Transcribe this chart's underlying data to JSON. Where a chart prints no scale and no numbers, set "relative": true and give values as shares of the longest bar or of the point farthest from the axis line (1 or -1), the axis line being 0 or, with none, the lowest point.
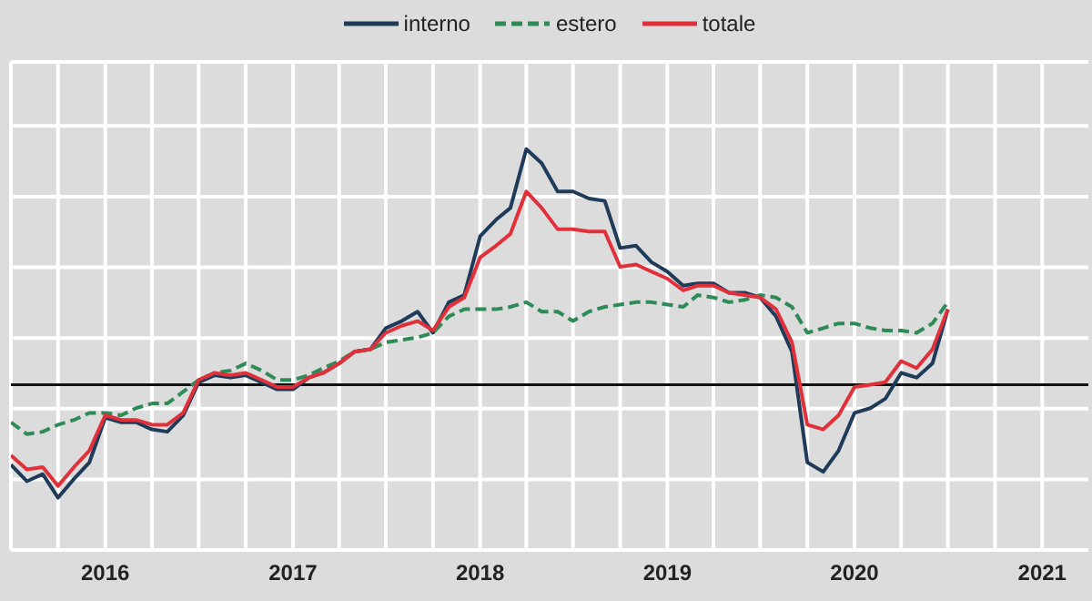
{
  "chart_data": {
    "type": "line",
    "relative": true,
    "grid": true,
    "legend": "top",
    "ref_lines": [
      {
        "axis": "y",
        "value": 0,
        "color": "#111111"
      }
    ],
    "marker": "none",
    "x": [
      "2015-07",
      "2015-08",
      "2015-09",
      "2015-10",
      "2015-11",
      "2015-12",
      "2016-01",
      "2016-02",
      "2016-03",
      "2016-04",
      "2016-05",
      "2016-06",
      "2016-07",
      "2016-08",
      "2016-09",
      "2016-10",
      "2016-11",
      "2016-12",
      "2017-01",
      "2017-02",
      "2017-03",
      "2017-04",
      "2017-05",
      "2017-06",
      "2017-07",
      "2017-08",
      "2017-09",
      "2017-10",
      "2017-11",
      "2017-12",
      "2018-01",
      "2018-02",
      "2018-03",
      "2018-04",
      "2018-05",
      "2018-06",
      "2018-07",
      "2018-08",
      "2018-09",
      "2018-10",
      "2018-11",
      "2018-12",
      "2019-01",
      "2019-02",
      "2019-03",
      "2019-04",
      "2019-05",
      "2019-06",
      "2019-07",
      "2019-08",
      "2019-09",
      "2019-10",
      "2019-11",
      "2019-12",
      "2020-01",
      "2020-02",
      "2020-03",
      "2020-04",
      "2020-05",
      "2020-06",
      "2020-07"
    ],
    "xlim": [
      "2015-07",
      "2021-04"
    ],
    "xticks": [
      {
        "value": "2015-10",
        "label": null
      },
      {
        "value": "2016-01",
        "label": "2016"
      },
      {
        "value": "2016-04",
        "label": null
      },
      {
        "value": "2016-07",
        "label": null
      },
      {
        "value": "2016-10",
        "label": null
      },
      {
        "value": "2017-01",
        "label": "2017"
      },
      {
        "value": "2017-04",
        "label": null
      },
      {
        "value": "2017-07",
        "label": null
      },
      {
        "value": "2017-10",
        "label": null
      },
      {
        "value": "2018-01",
        "label": "2018"
      },
      {
        "value": "2018-04",
        "label": null
      },
      {
        "value": "2018-07",
        "label": null
      },
      {
        "value": "2018-10",
        "label": null
      },
      {
        "value": "2019-01",
        "label": "2019"
      },
      {
        "value": "2019-04",
        "label": null
      },
      {
        "value": "2019-07",
        "label": null
      },
      {
        "value": "2019-10",
        "label": null
      },
      {
        "value": "2020-01",
        "label": "2020"
      },
      {
        "value": "2020-04",
        "label": null
      },
      {
        "value": "2020-07",
        "label": null
      },
      {
        "value": "2020-10",
        "label": null
      },
      {
        "value": "2021-01",
        "label": "2021"
      }
    ],
    "series": [
      {
        "name": "interno",
        "color": "#1f3b5a",
        "line_style": "solid",
        "values": [
          -0.34,
          -0.41,
          -0.38,
          -0.48,
          -0.4,
          -0.33,
          -0.14,
          -0.16,
          -0.16,
          -0.19,
          -0.2,
          -0.13,
          0.01,
          0.04,
          0.03,
          0.04,
          0.01,
          -0.02,
          -0.02,
          0.03,
          0.05,
          0.09,
          0.14,
          0.15,
          0.24,
          0.27,
          0.31,
          0.22,
          0.35,
          0.38,
          0.63,
          0.7,
          0.75,
          1,
          0.94,
          0.82,
          0.82,
          0.79,
          0.78,
          0.58,
          0.59,
          0.52,
          0.48,
          0.42,
          0.43,
          0.43,
          0.39,
          0.39,
          0.37,
          0.29,
          0.14,
          -0.33,
          -0.37,
          -0.28,
          -0.12,
          -0.1,
          -0.06,
          0.05,
          0.03,
          0.09,
          0.32
        ]
      },
      {
        "name": "estero",
        "color": "#2e8b57",
        "line_style": "dashed",
        "values": [
          -0.16,
          -0.21,
          -0.2,
          -0.17,
          -0.15,
          -0.12,
          -0.12,
          -0.13,
          -0.1,
          -0.08,
          -0.08,
          -0.03,
          0.02,
          0.05,
          0.06,
          0.09,
          0.06,
          0.02,
          0.02,
          0.04,
          0.07,
          0.1,
          0.14,
          0.15,
          0.18,
          0.19,
          0.2,
          0.22,
          0.29,
          0.32,
          0.32,
          0.32,
          0.33,
          0.35,
          0.31,
          0.31,
          0.27,
          0.31,
          0.33,
          0.34,
          0.35,
          0.35,
          0.34,
          0.33,
          0.38,
          0.37,
          0.35,
          0.36,
          0.38,
          0.37,
          0.33,
          0.22,
          0.24,
          0.26,
          0.26,
          0.24,
          0.23,
          0.23,
          0.22,
          0.26,
          0.35
        ]
      },
      {
        "name": "totale",
        "color": "#e0303a",
        "line_style": "solid",
        "values": [
          -0.3,
          -0.36,
          -0.35,
          -0.43,
          -0.35,
          -0.28,
          -0.13,
          -0.15,
          -0.15,
          -0.17,
          -0.17,
          -0.12,
          0.02,
          0.05,
          0.04,
          0.05,
          0.02,
          -0.01,
          -0.01,
          0.03,
          0.05,
          0.09,
          0.14,
          0.15,
          0.22,
          0.25,
          0.27,
          0.23,
          0.33,
          0.37,
          0.54,
          0.59,
          0.64,
          0.82,
          0.75,
          0.66,
          0.66,
          0.65,
          0.65,
          0.5,
          0.51,
          0.48,
          0.45,
          0.4,
          0.42,
          0.42,
          0.39,
          0.38,
          0.37,
          0.32,
          0.18,
          -0.17,
          -0.19,
          -0.13,
          -0.01,
          0,
          0.01,
          0.1,
          0.07,
          0.15,
          0.32
        ]
      }
    ]
  }
}
